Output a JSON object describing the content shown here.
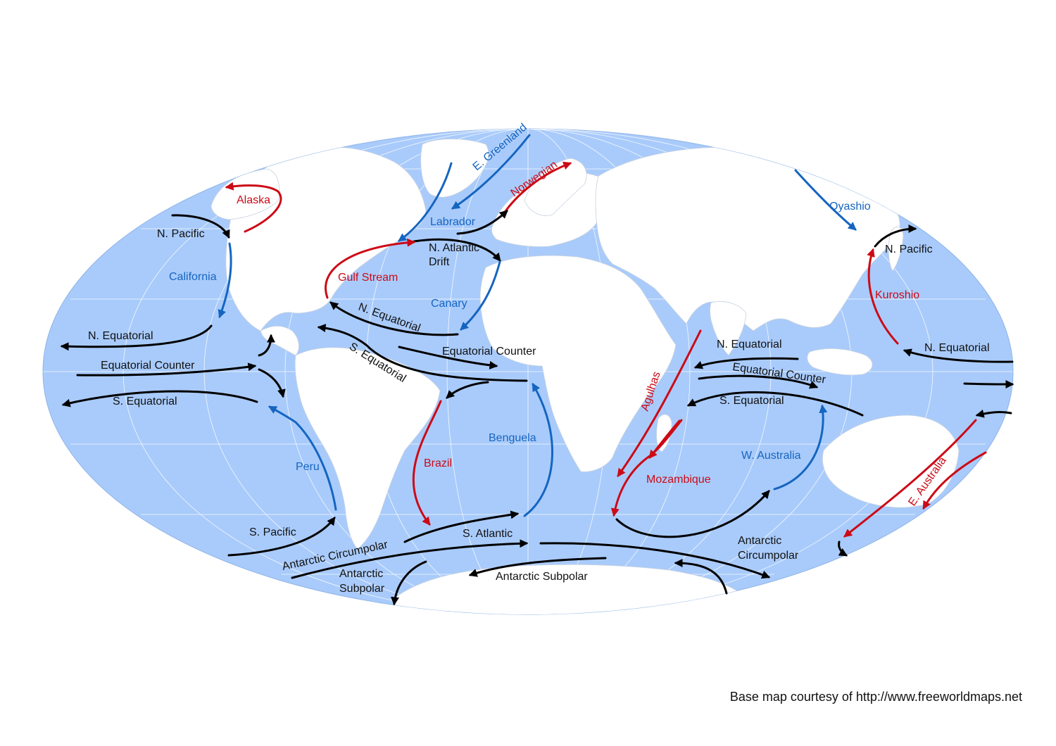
{
  "colors": {
    "ocean": "#a9cbfb",
    "land": "#ffffff",
    "cold_current": "#1565c0",
    "warm_current": "#cc0a16",
    "neutral_current": "#000000"
  },
  "credit": "Base map courtesy of http://www.freeworldmaps.net",
  "currents": {
    "alaska": "Alaska",
    "n_pacific_east": "N. Pacific",
    "california": "California",
    "n_equatorial_pacific": "N. Equatorial",
    "equatorial_counter_pacific": "Equatorial Counter",
    "s_equatorial_pacific": "S. Equatorial",
    "peru": "Peru",
    "s_pacific": "S. Pacific",
    "antarctic_circumpolar_west": "Antarctic Circumpolar",
    "antarctic_subpolar_west_1": "Antarctic",
    "antarctic_subpolar_west_2": "Subpolar",
    "e_greenland": "E. Greenland",
    "labrador": "Labrador",
    "norwegian": "Norwegian",
    "n_atlantic_drift_1": "N. Atlantic",
    "n_atlantic_drift_2": "Drift",
    "gulf_stream": "Gulf Stream",
    "canary": "Canary",
    "n_equatorial_atlantic": "N. Equatorial",
    "s_equatorial_atlantic": "S. Equatorial",
    "equatorial_counter_atlantic": "Equatorial Counter",
    "brazil": "Brazil",
    "benguela": "Benguela",
    "s_atlantic": "S. Atlantic",
    "antarctic_subpolar_center": "Antarctic Subpolar",
    "agulhas": "Agulhas",
    "mozambique": "Mozambique",
    "n_equatorial_indian": "N. Equatorial",
    "equatorial_counter_indian": "Equatorial Counter",
    "s_equatorial_indian": "S. Equatorial",
    "w_australia": "W. Australia",
    "antarctic_circumpolar_east_1": "Antarctic",
    "antarctic_circumpolar_east_2": "Circumpolar",
    "oyashio": "Oyashio",
    "n_pacific_west": "N. Pacific",
    "kuroshio": "Kuroshio",
    "n_equatorial_west_pacific": "N. Equatorial",
    "e_australia": "E. Australia"
  }
}
